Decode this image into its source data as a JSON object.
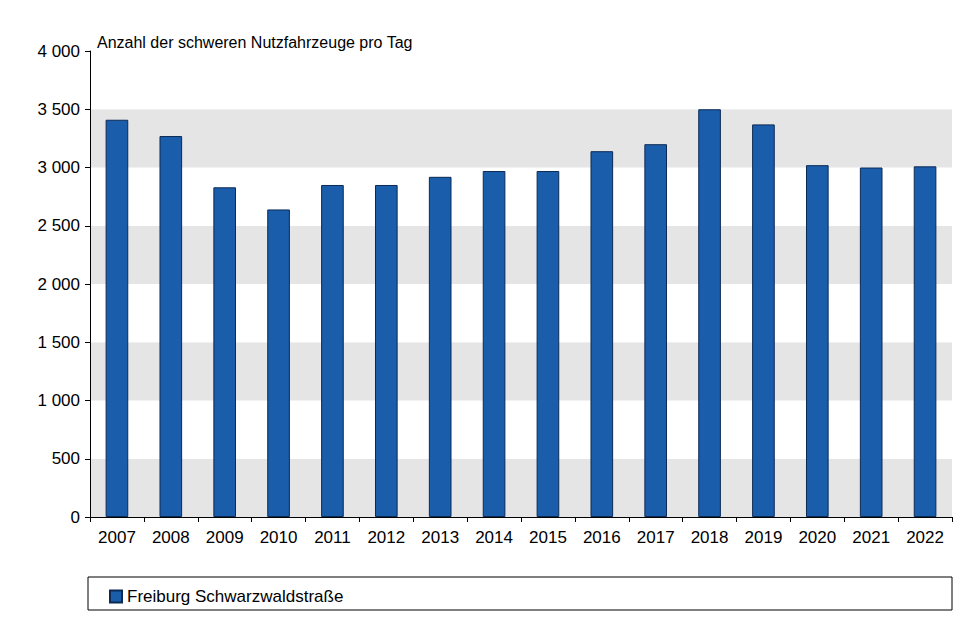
{
  "chart_data": {
    "type": "bar",
    "title": "Anzahl der schweren Nutzfahrzeuge pro Tag",
    "categories": [
      "2007",
      "2008",
      "2009",
      "2010",
      "2011",
      "2012",
      "2013",
      "2014",
      "2015",
      "2016",
      "2017",
      "2018",
      "2019",
      "2020",
      "2021",
      "2022"
    ],
    "series": [
      {
        "name": "Freiburg Schwarzwaldstraße",
        "color": "#1a5daa",
        "values": [
          3410,
          3270,
          2830,
          2640,
          2850,
          2850,
          2920,
          2970,
          2970,
          3140,
          3200,
          3500,
          3370,
          3020,
          3000,
          3010
        ]
      }
    ],
    "ylim": [
      0,
      4000
    ],
    "yticks": [
      0,
      500,
      {
        "value": 1000,
        "label": "1 000"
      },
      {
        "value": 1500,
        "label": "1 500"
      },
      {
        "value": 2000,
        "label": "2 000"
      },
      {
        "value": 2500,
        "label": "2 500"
      },
      {
        "value": 3000,
        "label": "3 000"
      },
      {
        "value": 3500,
        "label": "3 500"
      },
      {
        "value": 4000,
        "label": "4 000"
      }
    ],
    "grid": true,
    "legend": "bottom"
  }
}
